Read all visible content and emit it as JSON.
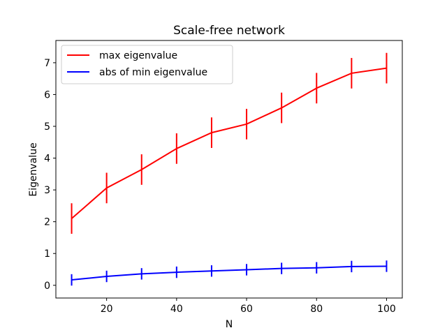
{
  "chart_data": {
    "type": "line",
    "title": "Scale-free network",
    "xlabel": "N",
    "ylabel": "Eigenvalue",
    "xlim": [
      5.5,
      104.5
    ],
    "ylim": [
      -0.4,
      7.7
    ],
    "xticks": [
      20,
      40,
      60,
      80,
      100
    ],
    "yticks": [
      0,
      1,
      2,
      3,
      4,
      5,
      6,
      7
    ],
    "grid": false,
    "legend_position": "upper-left",
    "x": [
      10,
      20,
      30,
      40,
      50,
      60,
      70,
      80,
      90,
      100
    ],
    "series": [
      {
        "name": "max eigenvalue",
        "color": "#ff0000",
        "values": [
          2.1,
          3.06,
          3.64,
          4.3,
          4.8,
          5.07,
          5.58,
          6.2,
          6.67,
          6.83
        ],
        "errors": [
          0.48,
          0.48,
          0.48,
          0.48,
          0.48,
          0.48,
          0.48,
          0.48,
          0.48,
          0.48
        ]
      },
      {
        "name": "abs of min eigenvalue",
        "color": "#0000ff",
        "values": [
          0.17,
          0.28,
          0.36,
          0.41,
          0.45,
          0.49,
          0.53,
          0.55,
          0.59,
          0.6
        ],
        "errors": [
          0.18,
          0.18,
          0.18,
          0.18,
          0.18,
          0.18,
          0.18,
          0.18,
          0.18,
          0.18
        ]
      }
    ]
  }
}
